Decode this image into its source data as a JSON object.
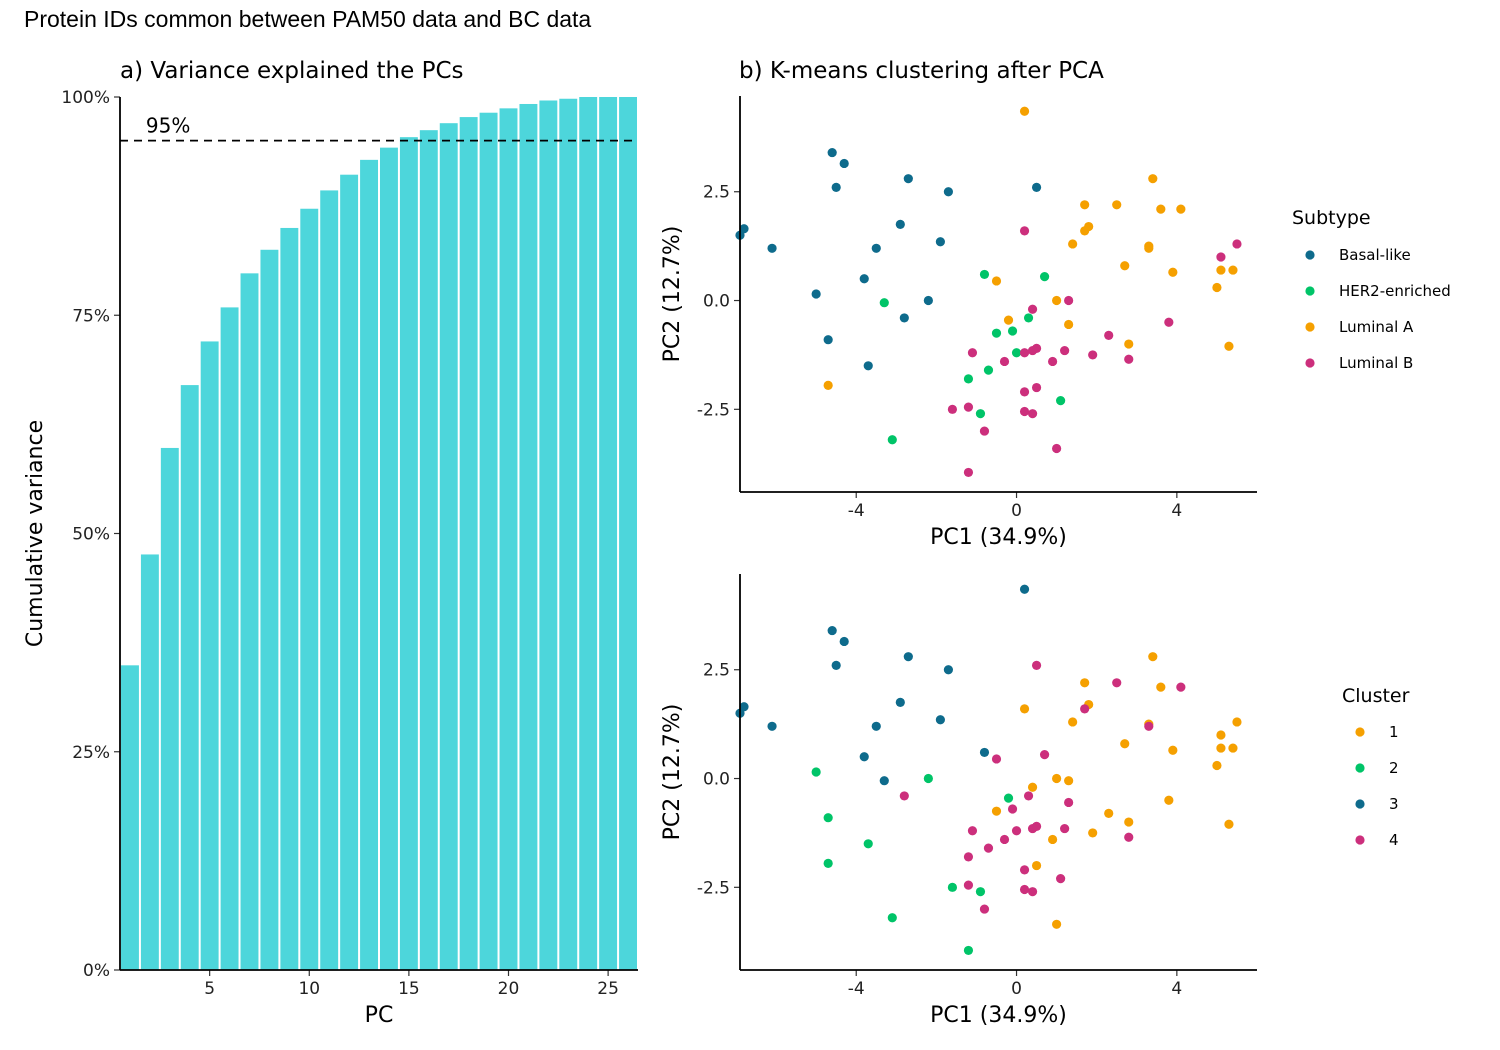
{
  "page": {
    "title": "Protein IDs common between PAM50 data and BC data"
  },
  "chart_data": [
    {
      "id": "variance",
      "type": "bar",
      "title": "a) Variance explained the PCs",
      "xlabel": "PC",
      "ylabel": "Cumulative variance",
      "x": [
        1,
        2,
        3,
        4,
        5,
        6,
        7,
        8,
        9,
        10,
        11,
        12,
        13,
        14,
        15,
        16,
        17,
        18,
        19,
        20,
        21,
        22,
        23,
        24,
        25,
        26
      ],
      "values": [
        34.9,
        47.6,
        59.8,
        67.0,
        72.0,
        75.9,
        79.8,
        82.5,
        85.0,
        87.2,
        89.3,
        91.1,
        92.8,
        94.2,
        95.4,
        96.2,
        97.0,
        97.7,
        98.2,
        98.7,
        99.2,
        99.6,
        99.8,
        100.0,
        100.0,
        100.0
      ],
      "xticks": [
        5,
        10,
        15,
        20,
        25
      ],
      "xlim": [
        0.5,
        26.5
      ],
      "ylim": [
        0,
        100
      ],
      "yticks": [
        0,
        25,
        50,
        75,
        100
      ],
      "ytick_labels": [
        "0%",
        "25%",
        "50%",
        "75%",
        "100%"
      ],
      "threshold": {
        "value": 95,
        "label": "95%"
      },
      "bar_color": "#4DD6DB"
    },
    {
      "id": "pca-subtype",
      "type": "scatter",
      "title": "b) K-means clustering after PCA",
      "xlabel": "PC1 (34.9%)",
      "ylabel": "PC2 (12.7%)",
      "xlim": [
        -6.9,
        6.0
      ],
      "ylim": [
        -4.4,
        4.7
      ],
      "xticks": [
        -4,
        0,
        4
      ],
      "xtick_labels": [
        "-4",
        "0",
        "4"
      ],
      "yticks": [
        -2.5,
        0,
        2.5
      ],
      "ytick_labels": [
        "-2.5",
        "0.0",
        "2.5"
      ],
      "legend_title": "Subtype",
      "series": [
        {
          "name": "Basal-like",
          "color": "#0E6B8C",
          "points": [
            [
              -6.9,
              1.5
            ],
            [
              -6.8,
              1.65
            ],
            [
              -6.1,
              1.2
            ],
            [
              -5.0,
              0.15
            ],
            [
              -4.7,
              -0.9
            ],
            [
              -4.6,
              3.4
            ],
            [
              -4.5,
              2.6
            ],
            [
              -4.3,
              3.15
            ],
            [
              -3.8,
              0.5
            ],
            [
              -3.7,
              -1.5
            ],
            [
              -3.5,
              1.2
            ],
            [
              -2.9,
              1.75
            ],
            [
              -2.8,
              -0.4
            ],
            [
              -2.7,
              2.8
            ],
            [
              -2.2,
              0.0
            ],
            [
              -1.9,
              1.35
            ],
            [
              -1.7,
              2.5
            ],
            [
              0.5,
              2.6
            ]
          ]
        },
        {
          "name": "HER2-enriched",
          "color": "#00C468",
          "points": [
            [
              -3.3,
              -0.05
            ],
            [
              -3.1,
              -3.2
            ],
            [
              -1.2,
              -1.8
            ],
            [
              -0.9,
              -2.6
            ],
            [
              -0.8,
              0.6
            ],
            [
              -0.7,
              -1.6
            ],
            [
              -0.5,
              -0.75
            ],
            [
              -0.1,
              -0.7
            ],
            [
              0.0,
              -1.2
            ],
            [
              0.3,
              -0.4
            ],
            [
              0.7,
              0.55
            ],
            [
              1.1,
              -2.3
            ]
          ]
        },
        {
          "name": "Luminal A",
          "color": "#F5A000",
          "points": [
            [
              -4.7,
              -1.95
            ],
            [
              -0.5,
              0.45
            ],
            [
              -0.2,
              -0.45
            ],
            [
              0.2,
              4.35
            ],
            [
              1.0,
              0.0
            ],
            [
              1.3,
              -0.55
            ],
            [
              1.4,
              1.3
            ],
            [
              1.7,
              2.2
            ],
            [
              1.7,
              1.6
            ],
            [
              1.8,
              1.7
            ],
            [
              2.5,
              2.2
            ],
            [
              2.7,
              0.8
            ],
            [
              2.8,
              -1.0
            ],
            [
              3.3,
              1.25
            ],
            [
              3.3,
              1.2
            ],
            [
              3.4,
              2.8
            ],
            [
              3.6,
              2.1
            ],
            [
              3.9,
              0.65
            ],
            [
              4.1,
              2.1
            ],
            [
              5.0,
              0.3
            ],
            [
              5.1,
              0.7
            ],
            [
              5.3,
              -1.05
            ],
            [
              5.4,
              0.7
            ]
          ]
        },
        {
          "name": "Luminal B",
          "color": "#CC2F7C",
          "points": [
            [
              -1.6,
              -2.5
            ],
            [
              -1.2,
              -2.45
            ],
            [
              -1.2,
              -3.95
            ],
            [
              -1.1,
              -1.2
            ],
            [
              -0.8,
              -3.0
            ],
            [
              -0.3,
              -1.4
            ],
            [
              0.2,
              -1.2
            ],
            [
              0.2,
              -2.1
            ],
            [
              0.2,
              -2.55
            ],
            [
              0.2,
              1.6
            ],
            [
              0.4,
              -0.2
            ],
            [
              0.4,
              -1.15
            ],
            [
              0.4,
              -2.6
            ],
            [
              0.5,
              -1.1
            ],
            [
              0.5,
              -2.0
            ],
            [
              0.9,
              -1.4
            ],
            [
              1.0,
              -3.4
            ],
            [
              1.3,
              0.0
            ],
            [
              1.2,
              -1.15
            ],
            [
              1.9,
              -1.25
            ],
            [
              2.3,
              -0.8
            ],
            [
              2.8,
              -1.35
            ],
            [
              3.8,
              -0.5
            ],
            [
              5.1,
              1.0
            ],
            [
              5.5,
              1.3
            ]
          ]
        }
      ]
    },
    {
      "id": "pca-cluster",
      "type": "scatter",
      "title": "",
      "xlabel": "PC1 (34.9%)",
      "ylabel": "PC2 (12.7%)",
      "xlim": [
        -6.9,
        6.0
      ],
      "ylim": [
        -4.4,
        4.7
      ],
      "xticks": [
        -4,
        0,
        4
      ],
      "xtick_labels": [
        "-4",
        "0",
        "4"
      ],
      "yticks": [
        -2.5,
        0,
        2.5
      ],
      "ytick_labels": [
        "-2.5",
        "0.0",
        "2.5"
      ],
      "legend_title": "Cluster",
      "series": [
        {
          "name": "1",
          "color": "#F5A000",
          "points": [
            [
              0.2,
              1.6
            ],
            [
              0.5,
              -2.0
            ],
            [
              1.0,
              0.0
            ],
            [
              1.4,
              1.3
            ],
            [
              1.7,
              2.2
            ],
            [
              1.8,
              1.7
            ],
            [
              2.7,
              0.8
            ],
            [
              3.3,
              1.25
            ],
            [
              3.4,
              2.8
            ],
            [
              3.6,
              2.1
            ],
            [
              3.9,
              0.65
            ],
            [
              5.0,
              0.3
            ],
            [
              5.1,
              0.7
            ],
            [
              5.1,
              1.0
            ],
            [
              5.3,
              -1.05
            ],
            [
              5.4,
              0.7
            ],
            [
              5.5,
              1.3
            ],
            [
              -0.5,
              -0.75
            ],
            [
              0.4,
              -0.2
            ],
            [
              1.3,
              -0.05
            ],
            [
              2.3,
              -0.8
            ],
            [
              2.8,
              -1.0
            ],
            [
              3.8,
              -0.5
            ],
            [
              0.9,
              -1.4
            ],
            [
              1.9,
              -1.25
            ],
            [
              1.0,
              -3.35
            ]
          ]
        },
        {
          "name": "2",
          "color": "#00C468",
          "points": [
            [
              -5.0,
              0.15
            ],
            [
              -4.7,
              -0.9
            ],
            [
              -4.7,
              -1.95
            ],
            [
              -3.7,
              -1.5
            ],
            [
              -3.1,
              -3.2
            ],
            [
              -2.2,
              0.0
            ],
            [
              -1.6,
              -2.5
            ],
            [
              -1.2,
              -3.95
            ],
            [
              -0.9,
              -2.6
            ],
            [
              -0.2,
              -0.45
            ]
          ]
        },
        {
          "name": "3",
          "color": "#0E6B8C",
          "points": [
            [
              -6.9,
              1.5
            ],
            [
              -6.8,
              1.65
            ],
            [
              -6.1,
              1.2
            ],
            [
              -4.6,
              3.4
            ],
            [
              -4.5,
              2.6
            ],
            [
              -4.3,
              3.15
            ],
            [
              -3.8,
              0.5
            ],
            [
              -3.5,
              1.2
            ],
            [
              -3.3,
              -0.05
            ],
            [
              -2.9,
              1.75
            ],
            [
              -2.7,
              2.8
            ],
            [
              -1.9,
              1.35
            ],
            [
              -1.7,
              2.5
            ],
            [
              -0.8,
              0.6
            ],
            [
              0.2,
              4.35
            ]
          ]
        },
        {
          "name": "4",
          "color": "#CC2F7C",
          "points": [
            [
              -2.8,
              -0.4
            ],
            [
              -1.2,
              -1.8
            ],
            [
              -1.2,
              -2.45
            ],
            [
              -1.1,
              -1.2
            ],
            [
              -0.8,
              -3.0
            ],
            [
              -0.7,
              -1.6
            ],
            [
              -0.5,
              0.45
            ],
            [
              -0.3,
              -1.4
            ],
            [
              -0.1,
              -0.7
            ],
            [
              0.0,
              -1.2
            ],
            [
              0.2,
              -2.1
            ],
            [
              0.2,
              -2.55
            ],
            [
              0.3,
              -0.4
            ],
            [
              0.4,
              -1.15
            ],
            [
              0.4,
              -2.6
            ],
            [
              0.5,
              -1.1
            ],
            [
              0.5,
              2.6
            ],
            [
              0.7,
              0.55
            ],
            [
              1.1,
              -2.3
            ],
            [
              1.2,
              -1.15
            ],
            [
              1.3,
              -0.55
            ],
            [
              1.7,
              1.6
            ],
            [
              2.5,
              2.2
            ],
            [
              2.8,
              -1.35
            ],
            [
              3.3,
              1.2
            ],
            [
              4.1,
              2.1
            ]
          ]
        }
      ]
    }
  ]
}
